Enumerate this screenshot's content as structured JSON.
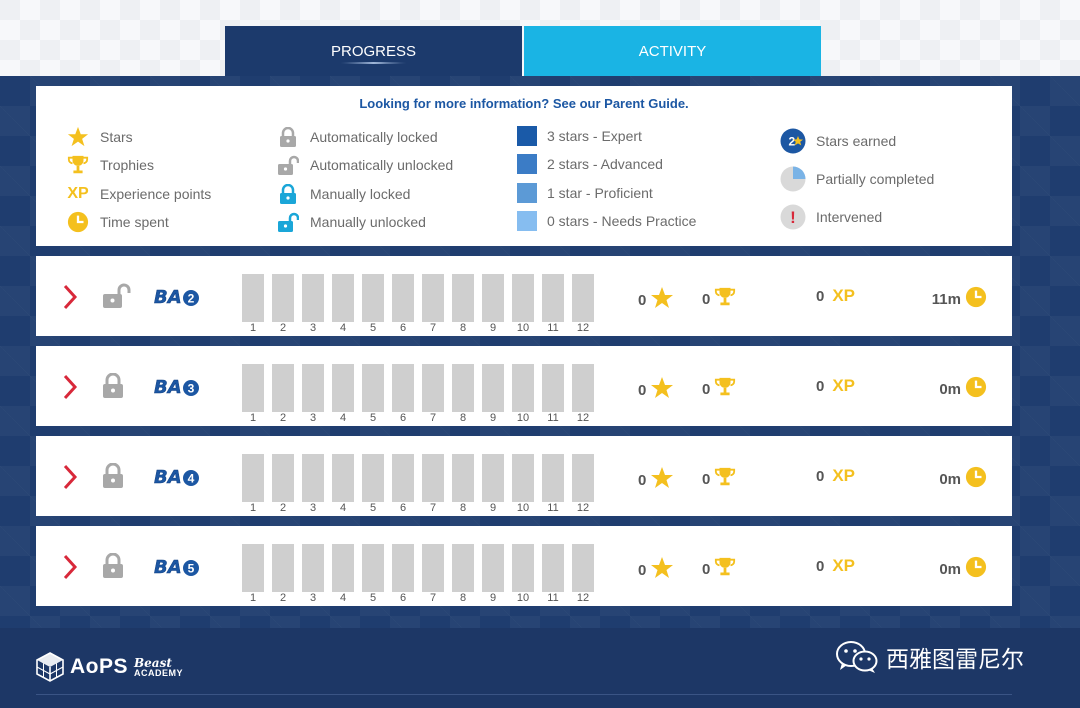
{
  "tabs": [
    {
      "label": "PROGRESS",
      "active": true
    },
    {
      "label": "ACTIVITY",
      "active": false
    }
  ],
  "legend": {
    "guide_link": "Looking for more information? See our Parent Guide.",
    "col1": [
      {
        "icon": "star-icon",
        "label": "Stars"
      },
      {
        "icon": "trophy-icon",
        "label": "Trophies"
      },
      {
        "icon": "xp-icon",
        "icon_text": "XP",
        "label": "Experience points"
      },
      {
        "icon": "clock-icon",
        "label": "Time spent"
      }
    ],
    "col2": [
      {
        "icon": "lock-icon",
        "label": "Automatically locked"
      },
      {
        "icon": "unlock-icon",
        "label": "Automatically unlocked"
      },
      {
        "icon": "lock-blue-icon",
        "label": "Manually locked"
      },
      {
        "icon": "unlock-blue-icon",
        "label": "Manually unlocked"
      }
    ],
    "col3": [
      {
        "color": "#1a5aa8",
        "label": "3 stars - Expert"
      },
      {
        "color": "#3b7cc6",
        "label": "2 stars - Advanced"
      },
      {
        "color": "#5c9ad6",
        "label": "1 star - Proficient"
      },
      {
        "color": "#86bdf0",
        "label": "0 stars - Needs Practice"
      }
    ],
    "col4": [
      {
        "icon": "stars-earned-badge-icon",
        "badge_num": "2",
        "label": "Stars earned"
      },
      {
        "icon": "partial-pie-icon",
        "label": "Partially completed"
      },
      {
        "icon": "exclamation-icon",
        "badge_text": "!",
        "label": "Intervened"
      }
    ]
  },
  "rows": [
    {
      "level": "2",
      "lock": "unlock-icon",
      "stars": "0",
      "trophies": "0",
      "xp": "0",
      "xp_label": "XP",
      "time": "11m"
    },
    {
      "level": "3",
      "lock": "lock-icon",
      "stars": "0",
      "trophies": "0",
      "xp": "0",
      "xp_label": "XP",
      "time": "0m"
    },
    {
      "level": "4",
      "lock": "lock-icon",
      "stars": "0",
      "trophies": "0",
      "xp": "0",
      "xp_label": "XP",
      "time": "0m"
    },
    {
      "level": "5",
      "lock": "lock-icon",
      "stars": "0",
      "trophies": "0",
      "xp": "0",
      "xp_label": "XP",
      "time": "0m"
    }
  ],
  "logo_prefix": "BA",
  "chapters": [
    "1",
    "2",
    "3",
    "4",
    "5",
    "6",
    "7",
    "8",
    "9",
    "10",
    "11",
    "12"
  ],
  "colors": {
    "chapter_empty": "#cfcfcf",
    "accent_red": "#d8283a",
    "gold": "#f4c01e",
    "blue": "#1c57a3"
  },
  "footer": {
    "brand": "AoPS",
    "brand_sub1": "Beast",
    "brand_sub2": "ACADEMY",
    "wechat_text": "西雅图雷尼尔"
  }
}
